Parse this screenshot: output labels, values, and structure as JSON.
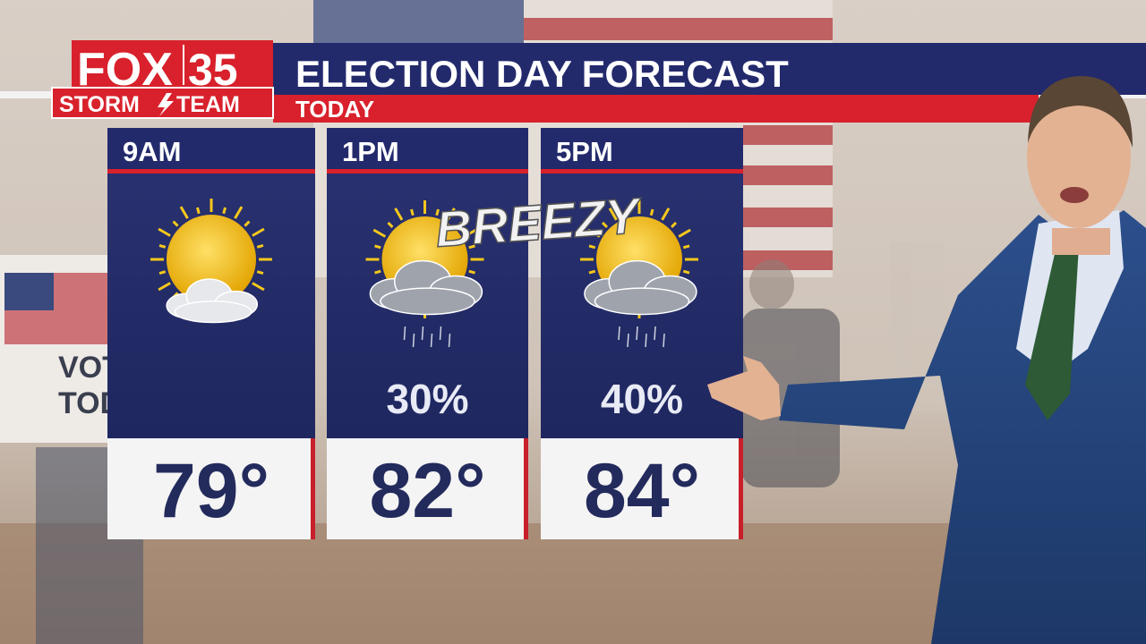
{
  "logo": {
    "brand": "FOX",
    "channel": "35",
    "team_left": "STORM",
    "team_right": "TEAM"
  },
  "header": {
    "title": "ELECTION DAY FORECAST",
    "subtitle": "TODAY"
  },
  "background_sign": {
    "line1": "VOT",
    "line2": "TOD"
  },
  "overlay": "BREEZY",
  "panels": [
    {
      "time": "9AM",
      "temp": "79°"
    },
    {
      "time": "1PM",
      "precip": "30%",
      "temp": "82°"
    },
    {
      "time": "5PM",
      "precip": "40%",
      "temp": "84°"
    }
  ]
}
